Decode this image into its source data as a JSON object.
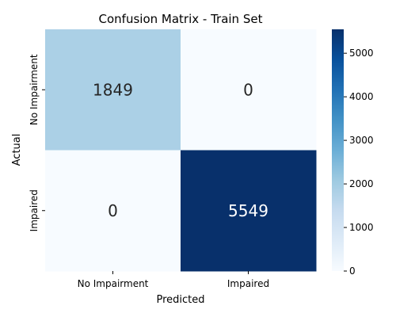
{
  "chart_data": {
    "type": "heatmap",
    "title": "Confusion Matrix - Train Set",
    "xlabel": "Predicted",
    "ylabel": "Actual",
    "x_categories": [
      "No Impairment",
      "Impaired"
    ],
    "y_categories": [
      "No Impairment",
      "Impaired"
    ],
    "values": [
      [
        1849,
        0
      ],
      [
        0,
        5549
      ]
    ],
    "colorbar": {
      "colormap": "Blues",
      "range": [
        0,
        5549
      ],
      "ticks": [
        0,
        1000,
        2000,
        3000,
        4000,
        5000
      ]
    }
  }
}
